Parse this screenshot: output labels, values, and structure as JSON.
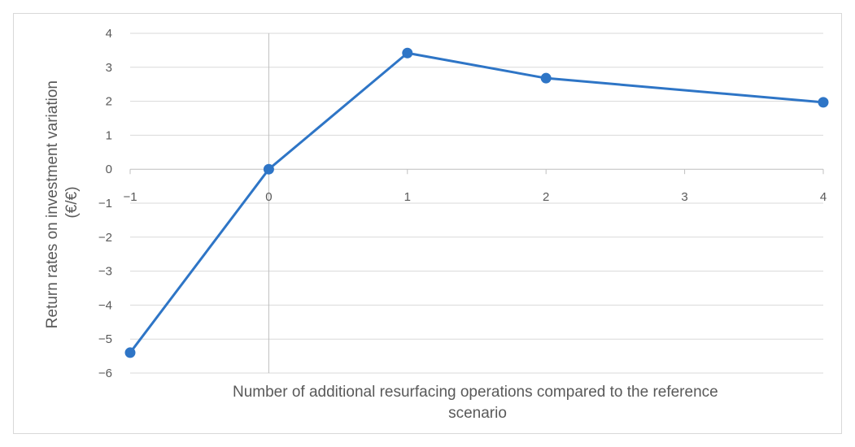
{
  "chart_data": {
    "type": "line",
    "title": "",
    "xlabel": "Number of additional resurfacing operations compared to the reference scenario",
    "ylabel": "Return rates on investment variation (€/€)",
    "x_categories": [
      "−1",
      "0",
      "1",
      "2",
      "3",
      "4"
    ],
    "y_ticks": [
      "4",
      "3",
      "2",
      "1",
      "0",
      "−1",
      "−2",
      "−3",
      "−4",
      "−5",
      "−6"
    ],
    "ylim": [
      -6,
      4
    ],
    "grid": true,
    "legend": "none",
    "series": [
      {
        "color": "#2e75c6",
        "points": [
          {
            "x": -1,
            "y": -5.4
          },
          {
            "x": 0,
            "y": 0
          },
          {
            "x": 1,
            "y": 3.42
          },
          {
            "x": 2,
            "y": 2.68
          },
          {
            "x": 4,
            "y": 1.97
          }
        ]
      }
    ]
  }
}
